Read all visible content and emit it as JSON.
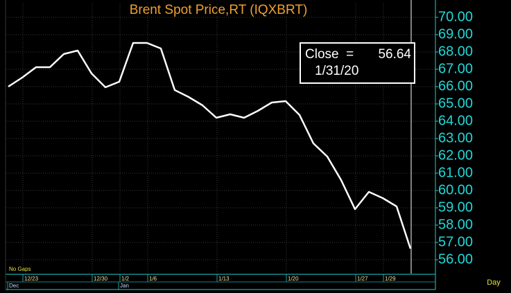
{
  "chart_data": {
    "type": "line",
    "title": "Brent Spot Price,RT  (IQXBRT)",
    "categories": [
      null,
      "12/23",
      null,
      null,
      null,
      null,
      "12/30",
      null,
      "1/2",
      null,
      "1/6",
      null,
      null,
      null,
      null,
      "1/13",
      null,
      null,
      null,
      null,
      "1/20",
      null,
      null,
      null,
      null,
      "1/27",
      null,
      "1/29",
      null,
      null
    ],
    "values": [
      66.0,
      66.52,
      67.12,
      67.12,
      67.88,
      68.08,
      66.76,
      65.96,
      66.28,
      68.52,
      68.52,
      68.2,
      65.8,
      65.4,
      64.92,
      64.2,
      64.4,
      64.2,
      64.6,
      65.08,
      65.16,
      64.36,
      62.72,
      61.96,
      60.6,
      58.92,
      59.92,
      59.56,
      59.08,
      56.64
    ],
    "color": "#ffffff",
    "ylim": [
      55.2,
      70.8
    ],
    "yticks": [
      {
        "value": 56,
        "label": "56.00"
      },
      {
        "value": 57,
        "label": "57.00"
      },
      {
        "value": 58,
        "label": "58.00"
      },
      {
        "value": 59,
        "label": "59.00"
      },
      {
        "value": 60,
        "label": "60.00"
      },
      {
        "value": 61,
        "label": "61.00"
      },
      {
        "value": 62,
        "label": "62.00"
      },
      {
        "value": 63,
        "label": "63.00"
      },
      {
        "value": 64,
        "label": "64.00"
      },
      {
        "value": 65,
        "label": "65.00"
      },
      {
        "value": 66,
        "label": "66.00"
      },
      {
        "value": 67,
        "label": "67.00"
      },
      {
        "value": 68,
        "label": "68.00"
      },
      {
        "value": 69,
        "label": "69.00"
      },
      {
        "value": 70,
        "label": "70.00"
      }
    ],
    "grid": true,
    "periods": [
      {
        "label": "Dec",
        "first_category": 0
      },
      {
        "label": "Jan",
        "first_category": 8
      }
    ],
    "annotation": {
      "text": "Close  =",
      "value": 56.64,
      "date": "1/31/20"
    },
    "gap_note": "No Gaps",
    "xlabel": "Day"
  }
}
